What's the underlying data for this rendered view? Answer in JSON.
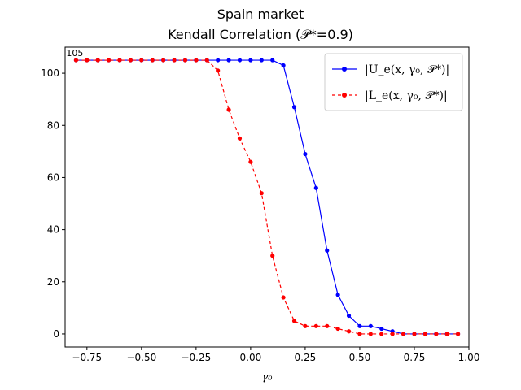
{
  "chart_data": {
    "type": "line",
    "title": "Spain market",
    "subtitle": "Kendall Correlation (𝒫*=0.9)",
    "xlabel": "γ₀",
    "ylabel": "",
    "xlim": [
      -0.85,
      1.0
    ],
    "ylim": [
      -5,
      110
    ],
    "x_ticks": [
      -0.75,
      -0.5,
      -0.25,
      0.0,
      0.25,
      0.5,
      0.75,
      1.0
    ],
    "x_tick_labels": [
      "−0.75",
      "−0.50",
      "−0.25",
      "0.00",
      "0.25",
      "0.50",
      "0.75",
      "1.00"
    ],
    "y_ticks": [
      0,
      20,
      40,
      60,
      80,
      100
    ],
    "y_tick_labels": [
      "0",
      "20",
      "40",
      "60",
      "80",
      "100"
    ],
    "grid": false,
    "legend_position": "top-right",
    "x": [
      -0.8,
      -0.75,
      -0.7,
      -0.65,
      -0.6,
      -0.55,
      -0.5,
      -0.45,
      -0.4,
      -0.35,
      -0.3,
      -0.25,
      -0.2,
      -0.15,
      -0.1,
      -0.05,
      0.0,
      0.05,
      0.1,
      0.15,
      0.2,
      0.25,
      0.3,
      0.35,
      0.4,
      0.45,
      0.5,
      0.55,
      0.6,
      0.65,
      0.7,
      0.75,
      0.8,
      0.85,
      0.9,
      0.95
    ],
    "series": [
      {
        "name": "|U_e(x, γ₀, 𝒫*)|",
        "color": "#0000ff",
        "line_style": "solid",
        "values": [
          105,
          105,
          105,
          105,
          105,
          105,
          105,
          105,
          105,
          105,
          105,
          105,
          105,
          105,
          105,
          105,
          105,
          105,
          105,
          103,
          87,
          69,
          56,
          32,
          15,
          7,
          3,
          3,
          2,
          1,
          0,
          0,
          0,
          0,
          0,
          0
        ]
      },
      {
        "name": "|L_e(x, γ₀, 𝒫*)|",
        "color": "#ff0000",
        "line_style": "dashed",
        "values": [
          105,
          105,
          105,
          105,
          105,
          105,
          105,
          105,
          105,
          105,
          105,
          105,
          105,
          101,
          86,
          75,
          66,
          54,
          30,
          14,
          5,
          3,
          3,
          3,
          2,
          1,
          0,
          0,
          0,
          0,
          0,
          0,
          0,
          0,
          0,
          0
        ]
      }
    ],
    "annotations": [
      {
        "text": "105",
        "x": -0.8,
        "y": 105
      }
    ]
  }
}
